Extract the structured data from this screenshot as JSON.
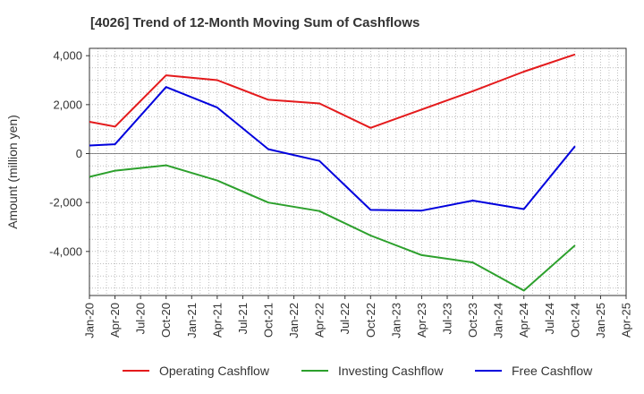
{
  "chart_data": {
    "type": "line",
    "title": "[4026]  Trend of 12-Month Moving Sum of Cashflows",
    "ylabel": "Amount (million yen)",
    "xlabel": "",
    "ylim": [
      -5800,
      4300
    ],
    "y_ticks": [
      4000,
      2000,
      0,
      -2000,
      -4000
    ],
    "y_tick_labels": [
      "4,000",
      "2,000",
      "0",
      "-2,000",
      "-4,000"
    ],
    "x_tick_labels": [
      "Jan-20",
      "Apr-20",
      "Jul-20",
      "Oct-20",
      "Jan-21",
      "Apr-21",
      "Jul-21",
      "Oct-21",
      "Jan-22",
      "Apr-22",
      "Jul-22",
      "Oct-22",
      "Jan-23",
      "Apr-23",
      "Jul-23",
      "Oct-23",
      "Jan-24",
      "Apr-24",
      "Jul-24",
      "Oct-24",
      "Jan-25",
      "Apr-25"
    ],
    "x_categories": [
      "Jan-20",
      "Apr-20",
      "Oct-20",
      "Apr-21",
      "Oct-21",
      "Apr-22",
      "Oct-22",
      "Apr-23",
      "Oct-23",
      "Apr-24",
      "Oct-24"
    ],
    "grid": true,
    "legend_position": "bottom",
    "series": [
      {
        "name": "Operating Cashflow",
        "color": "#e41a1c",
        "values": [
          1300,
          1100,
          3200,
          3000,
          2200,
          2050,
          1050,
          1800,
          2550,
          3350,
          4050
        ]
      },
      {
        "name": "Investing Cashflow",
        "color": "#2ca02c",
        "values": [
          -950,
          -700,
          -480,
          -1100,
          -2000,
          -2350,
          -3350,
          -4150,
          -4450,
          -5600,
          -3750
        ]
      },
      {
        "name": "Free Cashflow",
        "color": "#0000dd",
        "values": [
          330,
          380,
          2720,
          1880,
          180,
          -300,
          -2300,
          -2330,
          -1920,
          -2270,
          300
        ]
      }
    ]
  }
}
